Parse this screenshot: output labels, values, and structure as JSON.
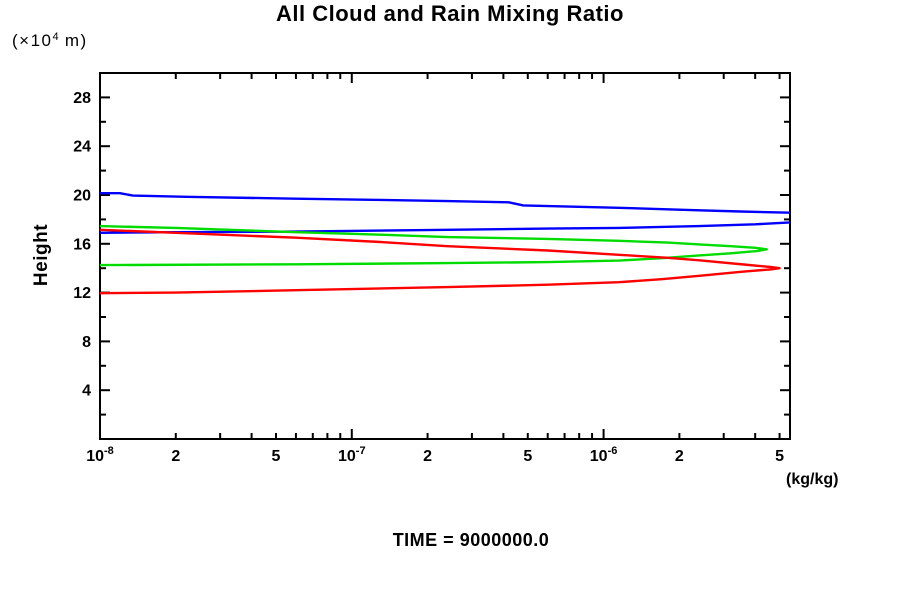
{
  "chart_data": {
    "type": "line",
    "title": "All Cloud and Rain Mixing Ratio",
    "ylabel": "Height",
    "y_unit_label": {
      "prefix": "(×10",
      "sup": "4",
      "suffix": " m)"
    },
    "x_unit_label": "(kg/kg)",
    "footer": "TIME = 9000000.0",
    "xscale": "log",
    "xlim": [
      1e-08,
      5.5e-06
    ],
    "ylim": [
      0,
      30
    ],
    "grid": false,
    "legend": "none",
    "axis_color": "#000000",
    "background_color": "#ffffff",
    "xticks": [
      {
        "v": 1e-08,
        "major": true,
        "label": {
          "base": "10",
          "sup": "-8"
        }
      },
      {
        "v": 2e-08,
        "major": false,
        "label": {
          "base": "2"
        }
      },
      {
        "v": 3e-08,
        "major": false
      },
      {
        "v": 4e-08,
        "major": false
      },
      {
        "v": 5e-08,
        "major": false,
        "label": {
          "base": "5"
        }
      },
      {
        "v": 6e-08,
        "major": false
      },
      {
        "v": 7e-08,
        "major": false
      },
      {
        "v": 8e-08,
        "major": false
      },
      {
        "v": 9e-08,
        "major": false
      },
      {
        "v": 1e-07,
        "major": true,
        "label": {
          "base": "10",
          "sup": "-7"
        }
      },
      {
        "v": 2e-07,
        "major": false,
        "label": {
          "base": "2"
        }
      },
      {
        "v": 3e-07,
        "major": false
      },
      {
        "v": 4e-07,
        "major": false
      },
      {
        "v": 5e-07,
        "major": false,
        "label": {
          "base": "5"
        }
      },
      {
        "v": 6e-07,
        "major": false
      },
      {
        "v": 7e-07,
        "major": false
      },
      {
        "v": 8e-07,
        "major": false
      },
      {
        "v": 9e-07,
        "major": false
      },
      {
        "v": 1e-06,
        "major": true,
        "label": {
          "base": "10",
          "sup": "-6"
        }
      },
      {
        "v": 2e-06,
        "major": false,
        "label": {
          "base": "2"
        }
      },
      {
        "v": 3e-06,
        "major": false
      },
      {
        "v": 4e-06,
        "major": false
      },
      {
        "v": 5e-06,
        "major": false,
        "label": {
          "base": "5"
        }
      }
    ],
    "yticks": [
      {
        "v": 2,
        "major": false
      },
      {
        "v": 4,
        "major": true,
        "label": "4"
      },
      {
        "v": 6,
        "major": false
      },
      {
        "v": 8,
        "major": true,
        "label": "8"
      },
      {
        "v": 10,
        "major": false
      },
      {
        "v": 12,
        "major": true,
        "label": "12"
      },
      {
        "v": 14,
        "major": false
      },
      {
        "v": 16,
        "major": true,
        "label": "16"
      },
      {
        "v": 18,
        "major": false
      },
      {
        "v": 20,
        "major": true,
        "label": "20"
      },
      {
        "v": 22,
        "major": false
      },
      {
        "v": 24,
        "major": true,
        "label": "24"
      },
      {
        "v": 26,
        "major": false
      },
      {
        "v": 28,
        "major": true,
        "label": "28"
      }
    ],
    "series": [
      {
        "name": "blue-upper-branch",
        "color": "#0000ff",
        "points": [
          [
            1e-08,
            20.15
          ],
          [
            1.2e-08,
            20.15
          ],
          [
            1.35e-08,
            19.95
          ],
          [
            2.2e-08,
            19.85
          ],
          [
            6e-08,
            19.7
          ],
          [
            1.3e-07,
            19.6
          ],
          [
            2.4e-07,
            19.5
          ],
          [
            4.2e-07,
            19.4
          ],
          [
            4.8e-07,
            19.15
          ],
          [
            1.15e-06,
            18.95
          ],
          [
            2.4e-06,
            18.75
          ],
          [
            3.5e-06,
            18.65
          ],
          [
            5.5e-06,
            18.55
          ]
        ]
      },
      {
        "name": "blue-lower-branch",
        "color": "#0000ff",
        "points": [
          [
            1e-08,
            16.9
          ],
          [
            2e-08,
            16.95
          ],
          [
            6e-08,
            17.0
          ],
          [
            2.4e-07,
            17.15
          ],
          [
            6e-07,
            17.25
          ],
          [
            1.15e-06,
            17.3
          ],
          [
            2.4e-06,
            17.45
          ],
          [
            4e-06,
            17.6
          ],
          [
            5.5e-06,
            17.75
          ]
        ]
      },
      {
        "name": "green-profile",
        "color": "#00dc00",
        "points": [
          [
            1e-08,
            17.45
          ],
          [
            2e-08,
            17.3
          ],
          [
            6e-08,
            16.95
          ],
          [
            1.3e-07,
            16.75
          ],
          [
            2.4e-07,
            16.55
          ],
          [
            6e-07,
            16.4
          ],
          [
            1.15e-06,
            16.25
          ],
          [
            1.8e-06,
            16.1
          ],
          [
            2.4e-06,
            15.95
          ],
          [
            3.2e-06,
            15.8
          ],
          [
            4e-06,
            15.67
          ],
          [
            4.45e-06,
            15.55
          ],
          [
            4.1e-06,
            15.42
          ],
          [
            3.2e-06,
            15.22
          ],
          [
            2.4e-06,
            15.05
          ],
          [
            1.7e-06,
            14.82
          ],
          [
            1.15e-06,
            14.62
          ],
          [
            6e-07,
            14.5
          ],
          [
            2.4e-07,
            14.42
          ],
          [
            6e-08,
            14.32
          ],
          [
            1e-08,
            14.25
          ]
        ]
      },
      {
        "name": "red-profile",
        "color": "#ff0000",
        "points": [
          [
            1e-08,
            17.15
          ],
          [
            2e-08,
            16.9
          ],
          [
            6e-08,
            16.5
          ],
          [
            1.3e-07,
            16.15
          ],
          [
            2.4e-07,
            15.8
          ],
          [
            6e-07,
            15.45
          ],
          [
            1.15e-06,
            15.1
          ],
          [
            1.8e-06,
            14.85
          ],
          [
            2.4e-06,
            14.65
          ],
          [
            3.6e-06,
            14.3
          ],
          [
            4.6e-06,
            14.1
          ],
          [
            5e-06,
            14.0
          ],
          [
            4.6e-06,
            13.9
          ],
          [
            3.6e-06,
            13.72
          ],
          [
            2.4e-06,
            13.38
          ],
          [
            1.7e-06,
            13.1
          ],
          [
            1.15e-06,
            12.85
          ],
          [
            6e-07,
            12.65
          ],
          [
            2.4e-07,
            12.45
          ],
          [
            6e-08,
            12.2
          ],
          [
            2e-08,
            12.0
          ],
          [
            1e-08,
            11.95
          ]
        ]
      }
    ]
  }
}
